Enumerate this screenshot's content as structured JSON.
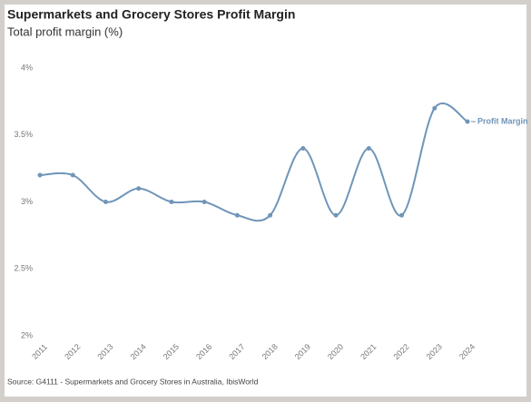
{
  "chart_data": {
    "type": "line",
    "title": "Supermarkets and Grocery Stores Profit Margin",
    "subtitle": "Total profit margin (%)",
    "source": "Source: G4111 - Supermarkets and Grocery Stores in Australia, IbisWorld",
    "categories": [
      "2011",
      "2012",
      "2013",
      "2014",
      "2015",
      "2016",
      "2017",
      "2018",
      "2019",
      "2020",
      "2021",
      "2022",
      "2023",
      "2024"
    ],
    "series": [
      {
        "name": "Profit Margin",
        "color": "#6f95b8",
        "values": [
          3.2,
          3.2,
          3.0,
          3.1,
          3.0,
          3.0,
          2.9,
          2.9,
          3.4,
          2.9,
          3.4,
          2.9,
          3.7,
          3.6
        ]
      }
    ],
    "ylim": [
      2,
      4
    ],
    "yticks": [
      {
        "value": 2,
        "label": "2%"
      },
      {
        "value": 2.5,
        "label": "2.5%"
      },
      {
        "value": 3,
        "label": "3%"
      },
      {
        "value": 3.5,
        "label": "3.5%"
      },
      {
        "value": 4,
        "label": "4%"
      }
    ],
    "grid": false
  }
}
